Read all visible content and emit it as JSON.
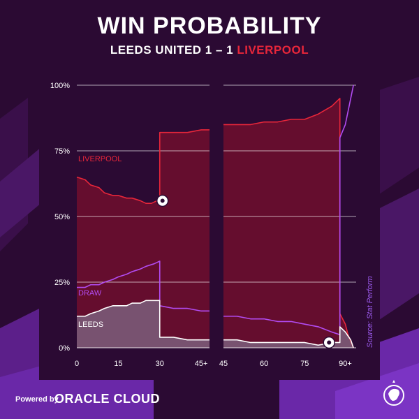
{
  "header": {
    "title": "WIN PROBABILITY",
    "subtitle_prefix": "LEEDS UNITED 1 – 1 ",
    "subtitle_away": "LIVERPOOL"
  },
  "footer": {
    "powered": "Powered by",
    "brand": "ORACLE CLOUD"
  },
  "source": "Source: Stat Perform",
  "icons": [
    "goal-ball-icon",
    "premier-league-lion-icon"
  ],
  "colors": {
    "background": "#2b0a33",
    "liverpool": "#e8263a",
    "liverpool_fill": "#6b0d2e",
    "draw": "#b24cf2",
    "leeds": "#ffffff",
    "leeds_fill": "#7a5a78",
    "grid": "#ffffff"
  },
  "chart_data": {
    "type": "area",
    "title": "WIN PROBABILITY",
    "subtitle": "LEEDS UNITED 1 – 1 LIVERPOOL",
    "ylim": [
      0,
      100
    ],
    "y_ticks": [
      {
        "value": 0,
        "label": "0%"
      },
      {
        "value": 25,
        "label": "25%"
      },
      {
        "value": 50,
        "label": "50%"
      },
      {
        "value": 75,
        "label": "75%"
      },
      {
        "value": 100,
        "label": "100%"
      }
    ],
    "grid": true,
    "panels": [
      {
        "xlim": [
          0,
          48
        ],
        "x_ticks": [
          {
            "value": 0,
            "label": "0"
          },
          {
            "value": 15,
            "label": "15"
          },
          {
            "value": 30,
            "label": "30"
          },
          {
            "value": 45,
            "label": "45+"
          }
        ]
      },
      {
        "xlim": [
          45,
          94
        ],
        "x_ticks": [
          {
            "value": 45,
            "label": "45"
          },
          {
            "value": 60,
            "label": "60"
          },
          {
            "value": 75,
            "label": "75"
          },
          {
            "value": 90,
            "label": "90+"
          }
        ]
      }
    ],
    "series": [
      {
        "name": "LIVERPOOL",
        "points": [
          {
            "x": 0,
            "y": 65
          },
          {
            "x": 3,
            "y": 64
          },
          {
            "x": 5,
            "y": 62
          },
          {
            "x": 8,
            "y": 61
          },
          {
            "x": 10,
            "y": 59
          },
          {
            "x": 13,
            "y": 58
          },
          {
            "x": 15,
            "y": 58
          },
          {
            "x": 18,
            "y": 57
          },
          {
            "x": 20,
            "y": 57
          },
          {
            "x": 23,
            "y": 56
          },
          {
            "x": 25,
            "y": 55
          },
          {
            "x": 27,
            "y": 55
          },
          {
            "x": 29,
            "y": 56
          },
          {
            "x": 30,
            "y": 56
          },
          {
            "x": 30,
            "y": 82
          },
          {
            "x": 35,
            "y": 82
          },
          {
            "x": 40,
            "y": 82
          },
          {
            "x": 45,
            "y": 83
          },
          {
            "x": 48,
            "y": 83
          },
          {
            "x": 45,
            "y": 85
          },
          {
            "x": 50,
            "y": 85
          },
          {
            "x": 55,
            "y": 85
          },
          {
            "x": 60,
            "y": 86
          },
          {
            "x": 65,
            "y": 86
          },
          {
            "x": 70,
            "y": 87
          },
          {
            "x": 75,
            "y": 87
          },
          {
            "x": 80,
            "y": 89
          },
          {
            "x": 85,
            "y": 92
          },
          {
            "x": 88,
            "y": 95
          },
          {
            "x": 88,
            "y": 13
          },
          {
            "x": 90,
            "y": 9
          },
          {
            "x": 91,
            "y": 5
          },
          {
            "x": 93,
            "y": 0
          }
        ]
      },
      {
        "name": "DRAW",
        "points": [
          {
            "x": 0,
            "y": 23
          },
          {
            "x": 3,
            "y": 23
          },
          {
            "x": 5,
            "y": 24
          },
          {
            "x": 8,
            "y": 24
          },
          {
            "x": 10,
            "y": 25
          },
          {
            "x": 13,
            "y": 26
          },
          {
            "x": 15,
            "y": 27
          },
          {
            "x": 18,
            "y": 28
          },
          {
            "x": 20,
            "y": 29
          },
          {
            "x": 23,
            "y": 30
          },
          {
            "x": 25,
            "y": 31
          },
          {
            "x": 28,
            "y": 32
          },
          {
            "x": 30,
            "y": 33
          },
          {
            "x": 30,
            "y": 16
          },
          {
            "x": 35,
            "y": 15
          },
          {
            "x": 40,
            "y": 15
          },
          {
            "x": 45,
            "y": 14
          },
          {
            "x": 48,
            "y": 14
          },
          {
            "x": 45,
            "y": 12
          },
          {
            "x": 50,
            "y": 12
          },
          {
            "x": 55,
            "y": 11
          },
          {
            "x": 60,
            "y": 11
          },
          {
            "x": 65,
            "y": 10
          },
          {
            "x": 70,
            "y": 10
          },
          {
            "x": 75,
            "y": 9
          },
          {
            "x": 80,
            "y": 8
          },
          {
            "x": 85,
            "y": 6
          },
          {
            "x": 88,
            "y": 5
          },
          {
            "x": 88,
            "y": 80
          },
          {
            "x": 90,
            "y": 85
          },
          {
            "x": 92,
            "y": 95
          },
          {
            "x": 93,
            "y": 100
          }
        ]
      },
      {
        "name": "LEEDS",
        "points": [
          {
            "x": 0,
            "y": 12
          },
          {
            "x": 3,
            "y": 12
          },
          {
            "x": 5,
            "y": 13
          },
          {
            "x": 8,
            "y": 14
          },
          {
            "x": 10,
            "y": 15
          },
          {
            "x": 13,
            "y": 16
          },
          {
            "x": 15,
            "y": 16
          },
          {
            "x": 18,
            "y": 16
          },
          {
            "x": 20,
            "y": 17
          },
          {
            "x": 23,
            "y": 17
          },
          {
            "x": 25,
            "y": 18
          },
          {
            "x": 28,
            "y": 18
          },
          {
            "x": 30,
            "y": 18
          },
          {
            "x": 30,
            "y": 4
          },
          {
            "x": 35,
            "y": 4
          },
          {
            "x": 40,
            "y": 3
          },
          {
            "x": 45,
            "y": 3
          },
          {
            "x": 48,
            "y": 3
          },
          {
            "x": 45,
            "y": 3
          },
          {
            "x": 50,
            "y": 3
          },
          {
            "x": 55,
            "y": 2
          },
          {
            "x": 60,
            "y": 2
          },
          {
            "x": 65,
            "y": 2
          },
          {
            "x": 70,
            "y": 2
          },
          {
            "x": 75,
            "y": 2
          },
          {
            "x": 80,
            "y": 1
          },
          {
            "x": 85,
            "y": 2
          },
          {
            "x": 88,
            "y": 2
          },
          {
            "x": 88,
            "y": 8
          },
          {
            "x": 90,
            "y": 6
          },
          {
            "x": 92,
            "y": 3
          },
          {
            "x": 93,
            "y": 0
          }
        ]
      }
    ],
    "annotations": [
      {
        "type": "goal",
        "x": 31,
        "y": 56,
        "panel": 0
      },
      {
        "type": "goal",
        "x": 84,
        "y": 2,
        "panel": 1
      }
    ],
    "series_labels": [
      "LIVERPOOL",
      "DRAW",
      "LEEDS"
    ]
  }
}
